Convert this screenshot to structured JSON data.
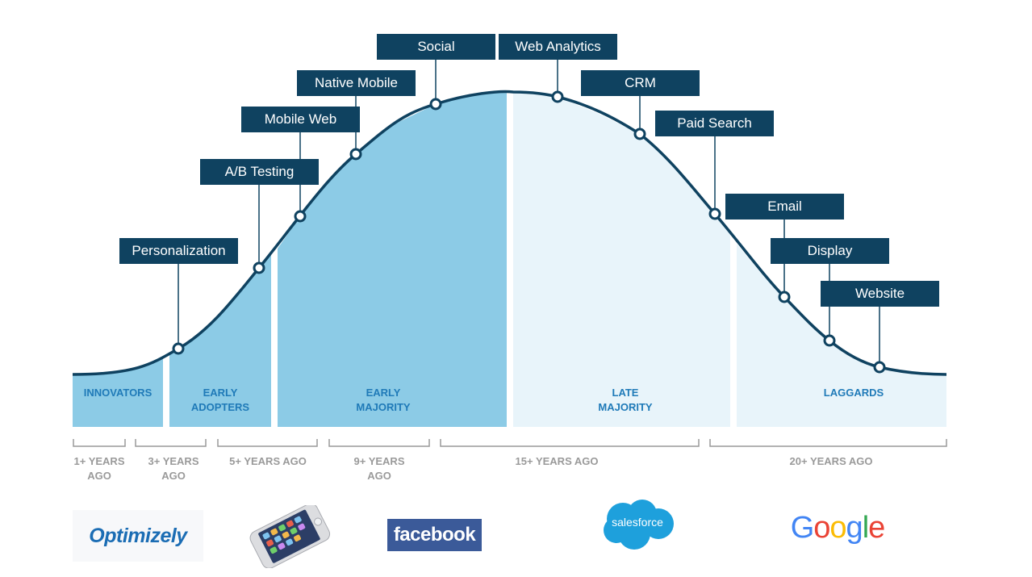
{
  "diagram": {
    "labels": [
      {
        "id": "personalization",
        "text": "Personalization"
      },
      {
        "id": "ab-testing",
        "text": "A/B Testing"
      },
      {
        "id": "mobile-web",
        "text": "Mobile Web"
      },
      {
        "id": "native-mobile",
        "text": "Native Mobile"
      },
      {
        "id": "social",
        "text": "Social"
      },
      {
        "id": "web-analytics",
        "text": "Web Analytics"
      },
      {
        "id": "crm",
        "text": "CRM"
      },
      {
        "id": "paid-search",
        "text": "Paid Search"
      },
      {
        "id": "email",
        "text": "Email"
      },
      {
        "id": "display",
        "text": "Display"
      },
      {
        "id": "website",
        "text": "Website"
      }
    ],
    "segments": [
      {
        "id": "innovators",
        "line1": "",
        "line2": "INNOVATORS"
      },
      {
        "id": "early-adopters",
        "line1": "EARLY",
        "line2": "ADOPTERS"
      },
      {
        "id": "early-majority",
        "line1": "EARLY",
        "line2": "MAJORITY"
      },
      {
        "id": "late-majority",
        "line1": "LATE",
        "line2": "MAJORITY"
      },
      {
        "id": "laggards",
        "line1": "",
        "line2": "LAGGARDS"
      }
    ],
    "timeline": [
      {
        "id": "1-years",
        "line1": "1+ YEARS",
        "line2": "AGO"
      },
      {
        "id": "3-years",
        "line1": "3+ YEARS",
        "line2": "AGO"
      },
      {
        "id": "5-years",
        "line1": "5+ YEARS AGO",
        "line2": ""
      },
      {
        "id": "9-years",
        "line1": "9+ YEARS",
        "line2": "AGO"
      },
      {
        "id": "15-years",
        "line1": "15+ YEARS AGO",
        "line2": ""
      },
      {
        "id": "20-years",
        "line1": "20+ YEARS AGO",
        "line2": ""
      }
    ],
    "logos": {
      "optimizely": "Optimizely",
      "facebook": "facebook",
      "salesforce": "salesforce",
      "google": "Google"
    },
    "colors": {
      "navy": "#0f4260",
      "fill_dark": "#8ccbe6",
      "fill_light": "#e8f4fa",
      "segment_text": "#1f7ab8",
      "timeline_text": "#9a9a9a"
    }
  }
}
